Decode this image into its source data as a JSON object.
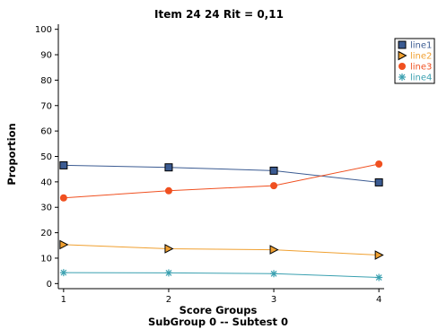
{
  "chart_data": {
    "type": "line",
    "title": "Item 24  24  Rit = 0,11",
    "xlabel": "Score Groups",
    "subtitle": "SubGroup 0 -- Subtest 0",
    "ylabel": "Proportion",
    "x": [
      1,
      2,
      3,
      4
    ],
    "xlim": [
      0.95,
      4.05
    ],
    "ylim": [
      -2,
      102
    ],
    "yticks": [
      0,
      10,
      20,
      30,
      40,
      50,
      60,
      70,
      80,
      90,
      100
    ],
    "xticks": [
      1,
      2,
      3,
      4
    ],
    "grid": false,
    "legend_position": "top-right",
    "series": [
      {
        "name": "line1",
        "values": [
          46.5,
          45.7,
          44.4,
          39.8
        ],
        "color": "#3b5b92",
        "marker": "square"
      },
      {
        "name": "line2",
        "values": [
          15.3,
          13.7,
          13.3,
          11.2
        ],
        "color": "#f0a030",
        "marker": "triangle-right"
      },
      {
        "name": "line3",
        "values": [
          33.7,
          36.5,
          38.5,
          47.0
        ],
        "color": "#f05020",
        "marker": "circle"
      },
      {
        "name": "line4",
        "values": [
          4.3,
          4.2,
          3.9,
          2.4
        ],
        "color": "#3aa0b0",
        "marker": "asterisk"
      }
    ]
  }
}
